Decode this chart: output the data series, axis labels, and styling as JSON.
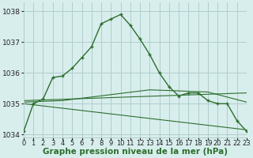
{
  "main_x": [
    0,
    1,
    2,
    3,
    4,
    5,
    6,
    7,
    8,
    9,
    10,
    11,
    12,
    13,
    14,
    15,
    16,
    17,
    18,
    19,
    20,
    21,
    22,
    23
  ],
  "main_y": [
    1034.1,
    1035.0,
    1035.15,
    1035.85,
    1035.9,
    1036.15,
    1036.5,
    1036.85,
    1037.6,
    1037.75,
    1037.9,
    1037.55,
    1037.1,
    1036.6,
    1036.0,
    1035.55,
    1035.25,
    1035.35,
    1035.35,
    1035.1,
    1035.0,
    1035.0,
    1034.45,
    1034.1
  ],
  "line2_x": [
    0,
    23
  ],
  "line2_y": [
    1035.0,
    1034.15
  ],
  "line3_x": [
    0,
    23
  ],
  "line3_y": [
    1035.1,
    1035.35
  ],
  "line4_x": [
    0,
    4,
    13,
    19,
    23
  ],
  "line4_y": [
    1035.05,
    1035.1,
    1035.45,
    1035.38,
    1035.05
  ],
  "bg_color": "#d8eeed",
  "grid_color": "#b0cccc",
  "line_color": "#2d6e2d",
  "xlim": [
    0,
    23
  ],
  "ylim": [
    1033.9,
    1038.3
  ],
  "yticks": [
    1034,
    1035,
    1036,
    1037,
    1038
  ],
  "xticks": [
    0,
    1,
    2,
    3,
    4,
    5,
    6,
    7,
    8,
    9,
    10,
    11,
    12,
    13,
    14,
    15,
    16,
    17,
    18,
    19,
    20,
    21,
    22,
    23
  ],
  "xlabel": "Graphe pression niveau de la mer (hPa)",
  "xlabel_fontsize": 7.5,
  "tick_fontsize": 6.0,
  "ytick_fontsize": 6.5
}
